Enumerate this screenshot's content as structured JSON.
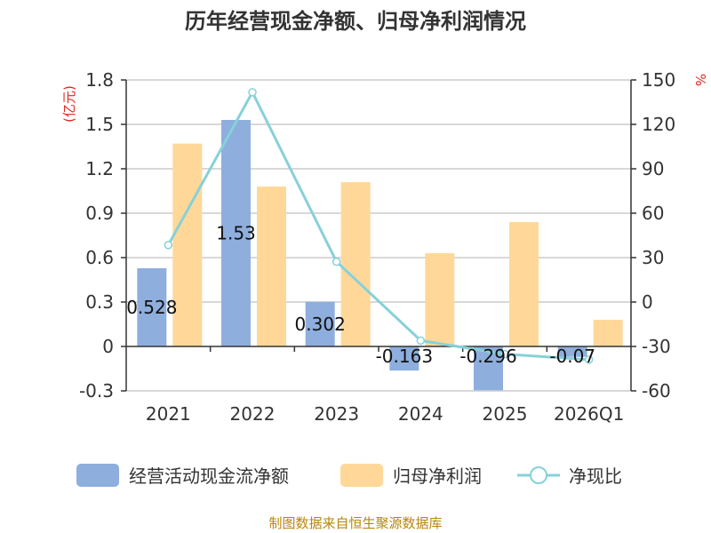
{
  "chart_data": {
    "type": "bar",
    "title": "历年经营现金净额、归母净利润情况",
    "categories": [
      "2021",
      "2022",
      "2023",
      "2024",
      "2025",
      "2026Q1"
    ],
    "series": [
      {
        "name": "经营活动现金流净额",
        "axis": "left",
        "color": "#8eaedd",
        "values": [
          0.528,
          1.53,
          0.302,
          -0.163,
          -0.296,
          -0.07
        ],
        "labels": [
          "0.528",
          "1.53",
          "0.302",
          "-0.163",
          "-0.296",
          "-0.07"
        ]
      },
      {
        "name": "归母净利润",
        "axis": "left",
        "color": "#ffd899",
        "values": [
          1.37,
          1.08,
          1.11,
          0.63,
          0.84,
          0.18
        ]
      },
      {
        "name": "净现比",
        "type": "line",
        "axis": "right",
        "color": "#86d1d9",
        "values": [
          38.5,
          141.7,
          27.2,
          -26.0,
          -35.2,
          -38.9
        ]
      }
    ],
    "left_axis": {
      "unit": "(亿元)",
      "min": -0.3,
      "max": 1.8,
      "ticks": [
        -0.3,
        0,
        0.3,
        0.6,
        0.9,
        1.2,
        1.5,
        1.8
      ],
      "tick_labels": [
        "-0.3",
        "0",
        "0.3",
        "0.6",
        "0.9",
        "1.2",
        "1.5",
        "1.8"
      ]
    },
    "right_axis": {
      "unit": "%",
      "min": -60,
      "max": 150,
      "ticks": [
        -60,
        -30,
        0,
        30,
        60,
        90,
        120,
        150
      ],
      "tick_labels": [
        "-60",
        "-30",
        "0",
        "30",
        "60",
        "90",
        "120",
        "150"
      ]
    },
    "grid": true,
    "legend_position": "bottom",
    "source": "制图数据来自恒生聚源数据库"
  }
}
